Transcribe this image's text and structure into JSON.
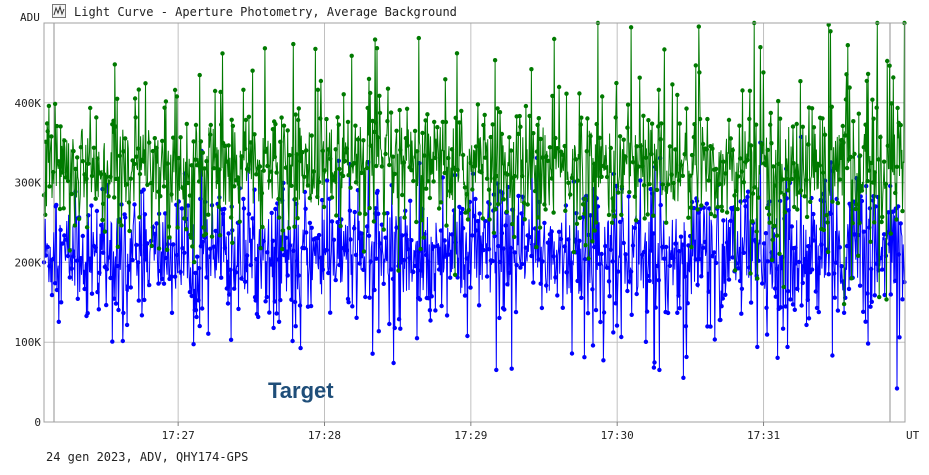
{
  "window": {
    "title": "Light Curve - Aperture Photometry, Average Background",
    "footer": "24 gen 2023, ADV, QHY174-GPS",
    "icon": "chart-icon"
  },
  "chart_data": {
    "type": "scatter",
    "ylabel": "ADU",
    "xlabel": "UT",
    "annotation": "Target",
    "y_ticks": [
      {
        "value": 0,
        "label": "0"
      },
      {
        "value": 100000,
        "label": "100K"
      },
      {
        "value": 200000,
        "label": "200K"
      },
      {
        "value": 300000,
        "label": "300K"
      },
      {
        "value": 400000,
        "label": "400K"
      }
    ],
    "x_ticks": [
      "17:27",
      "17:28",
      "17:29",
      "17:30",
      "17:31"
    ],
    "x_range": [
      "17:26:05",
      "17:31:58"
    ],
    "ylim": [
      0,
      500000
    ],
    "grid": true,
    "series": [
      {
        "color": "#0000ff",
        "mean": 210000,
        "spread": 32000,
        "low_tail": 90000,
        "high_tail": 80000
      },
      {
        "color": "#007a00",
        "mean": 320000,
        "spread": 30000,
        "low_tail": 90000,
        "high_tail": 110000
      }
    ]
  }
}
